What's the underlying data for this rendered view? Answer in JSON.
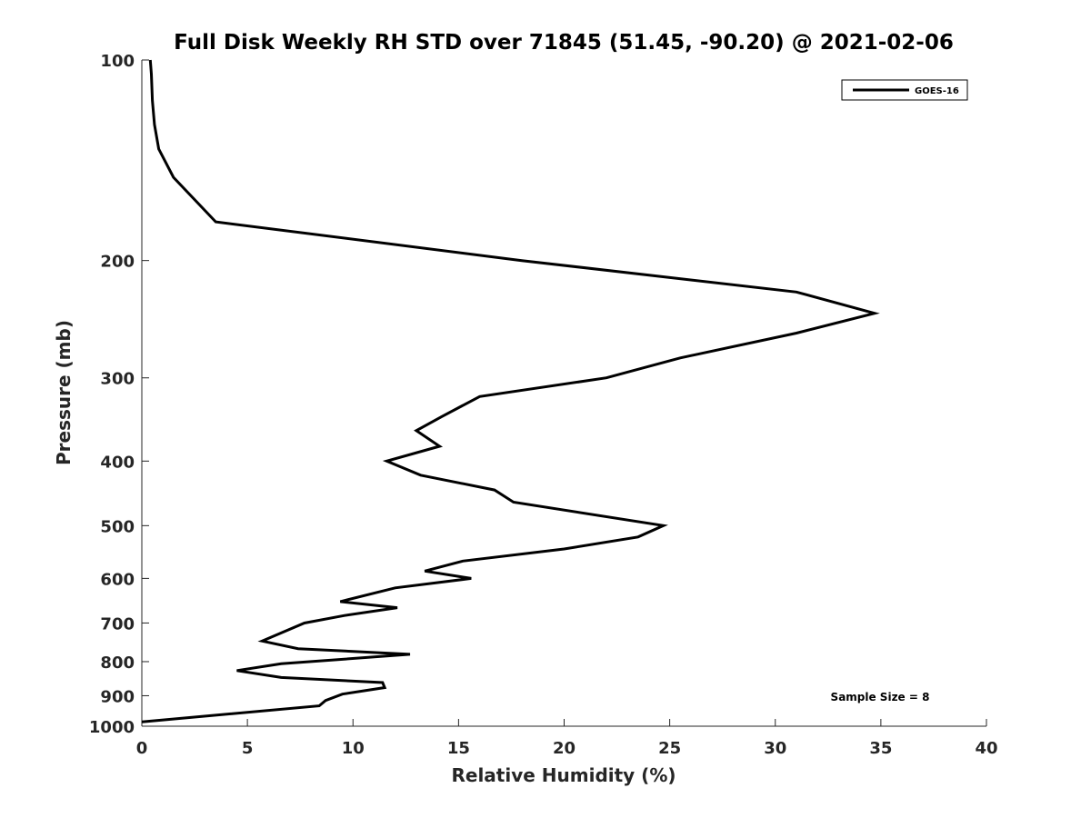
{
  "chart_data": {
    "type": "line",
    "title": "Full Disk Weekly RH STD over 71845 (51.45, -90.20) @ 2021-02-06",
    "xlabel": "Relative Humidity (%)",
    "ylabel": "Pressure (mb)",
    "xlim": [
      0,
      40
    ],
    "ylim": [
      1000,
      100
    ],
    "y_scale": "log",
    "x_ticks": [
      "0",
      "5",
      "10",
      "15",
      "20",
      "25",
      "30",
      "35",
      "40"
    ],
    "y_ticks": [
      "100",
      "200",
      "300",
      "400",
      "500",
      "600",
      "700",
      "800",
      "900",
      "1000"
    ],
    "grid": false,
    "legend_position": "top-right",
    "series": [
      {
        "name": "GOES-16",
        "color": "#000000",
        "points": [
          [
            0.4,
            100
          ],
          [
            0.45,
            105
          ],
          [
            0.5,
            115
          ],
          [
            0.6,
            125
          ],
          [
            0.8,
            136
          ],
          [
            1.5,
            150
          ],
          [
            3.5,
            175
          ],
          [
            18.0,
            200
          ],
          [
            31.0,
            223
          ],
          [
            34.7,
            240
          ],
          [
            31.0,
            257
          ],
          [
            25.5,
            280
          ],
          [
            22.0,
            300
          ],
          [
            16.0,
            320
          ],
          [
            14.2,
            343
          ],
          [
            13.0,
            360
          ],
          [
            14.1,
            380
          ],
          [
            11.6,
            400
          ],
          [
            13.2,
            420
          ],
          [
            16.7,
            442
          ],
          [
            17.6,
            461
          ],
          [
            24.7,
            500
          ],
          [
            23.5,
            520
          ],
          [
            20.0,
            542
          ],
          [
            15.2,
            565
          ],
          [
            13.4,
            585
          ],
          [
            15.6,
            600
          ],
          [
            12.0,
            620
          ],
          [
            9.4,
            650
          ],
          [
            12.1,
            664
          ],
          [
            9.6,
            682
          ],
          [
            7.7,
            700
          ],
          [
            5.7,
            745
          ],
          [
            7.4,
            765
          ],
          [
            12.7,
            780
          ],
          [
            6.6,
            806
          ],
          [
            4.5,
            825
          ],
          [
            6.6,
            845
          ],
          [
            11.4,
            860
          ],
          [
            11.5,
            875
          ],
          [
            9.5,
            895
          ],
          [
            8.7,
            915
          ],
          [
            8.4,
            932
          ],
          [
            0,
            985
          ]
        ]
      }
    ],
    "annotations": [
      "Sample Size = 8"
    ]
  }
}
